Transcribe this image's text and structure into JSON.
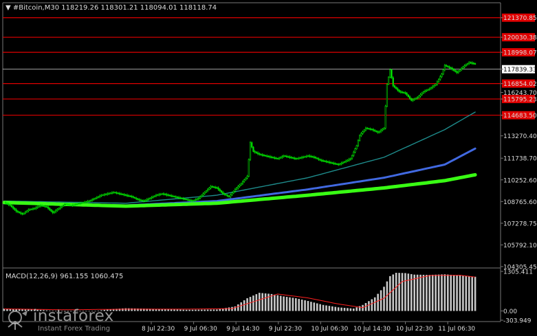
{
  "chart_data": [
    {
      "type": "candlestick",
      "header": "▼ #Bitcoin,M30  118219.26 118301.21 118094.01 118118.74",
      "price_range": [
        104305.45,
        122300
      ],
      "price_ticks": [
        121370.85,
        120030.38,
        118998.07,
        117839.33,
        116854.02,
        116243.7,
        115795.23,
        114683.5,
        113270.4,
        111738.7,
        110252.6,
        108765.6,
        107278.75,
        105792.1,
        104305.45
      ],
      "resistance_levels": [
        121370.85,
        120030.38,
        118998.07,
        116854.02,
        115795.23,
        114683.5
      ],
      "current_price": 117839.33,
      "current_price_label": "117839.33",
      "time_labels": [
        "8 Jul 22:30",
        "9 Jul 06:30",
        "9 Jul 14:30",
        "9 Jul 22:30",
        "10 Jul 06:30",
        "10 Jul 14:30",
        "10 Jul 22:30",
        "11 Jul 06:30"
      ],
      "price_path": [
        [
          0,
          108700
        ],
        [
          4,
          108500
        ],
        [
          8,
          108100
        ],
        [
          12,
          107900
        ],
        [
          16,
          108200
        ],
        [
          20,
          108300
        ],
        [
          24,
          108500
        ],
        [
          28,
          108400
        ],
        [
          32,
          108000
        ],
        [
          36,
          108300
        ],
        [
          40,
          108600
        ],
        [
          44,
          108500
        ],
        [
          48,
          108600
        ],
        [
          52,
          108700
        ],
        [
          56,
          108800
        ],
        [
          60,
          109000
        ],
        [
          64,
          109200
        ],
        [
          68,
          109300
        ],
        [
          72,
          109400
        ],
        [
          76,
          109300
        ],
        [
          80,
          109200
        ],
        [
          84,
          109100
        ],
        [
          88,
          108900
        ],
        [
          92,
          108800
        ],
        [
          96,
          109000
        ],
        [
          100,
          109200
        ],
        [
          104,
          109300
        ],
        [
          108,
          109200
        ],
        [
          112,
          109100
        ],
        [
          116,
          109000
        ],
        [
          120,
          108900
        ],
        [
          124,
          108800
        ],
        [
          128,
          109000
        ],
        [
          132,
          109400
        ],
        [
          136,
          109800
        ],
        [
          140,
          109700
        ],
        [
          144,
          109300
        ],
        [
          148,
          109100
        ],
        [
          152,
          109600
        ],
        [
          156,
          110000
        ],
        [
          160,
          110500
        ],
        [
          162,
          112800
        ],
        [
          164,
          112200
        ],
        [
          168,
          112000
        ],
        [
          172,
          111900
        ],
        [
          176,
          111800
        ],
        [
          180,
          111700
        ],
        [
          184,
          111900
        ],
        [
          188,
          111800
        ],
        [
          192,
          111700
        ],
        [
          196,
          111800
        ],
        [
          200,
          111900
        ],
        [
          204,
          111800
        ],
        [
          208,
          111600
        ],
        [
          212,
          111500
        ],
        [
          216,
          111400
        ],
        [
          220,
          111300
        ],
        [
          224,
          111500
        ],
        [
          228,
          111700
        ],
        [
          232,
          112600
        ],
        [
          234,
          113300
        ],
        [
          238,
          113800
        ],
        [
          242,
          113700
        ],
        [
          246,
          113500
        ],
        [
          250,
          113800
        ],
        [
          252,
          116800
        ],
        [
          254,
          117800
        ],
        [
          256,
          116700
        ],
        [
          260,
          116300
        ],
        [
          264,
          116200
        ],
        [
          268,
          115700
        ],
        [
          272,
          115900
        ],
        [
          276,
          116300
        ],
        [
          280,
          116500
        ],
        [
          284,
          116800
        ],
        [
          288,
          117500
        ],
        [
          290,
          118100
        ],
        [
          294,
          117900
        ],
        [
          298,
          117600
        ],
        [
          302,
          118000
        ],
        [
          306,
          118300
        ],
        [
          310,
          118200
        ]
      ],
      "moving_averages": [
        {
          "color": "#1e8c8c",
          "width": 1.4,
          "points": [
            [
              0,
              108800
            ],
            [
              80,
              108650
            ],
            [
              140,
              109200
            ],
            [
              200,
              110400
            ],
            [
              250,
              111800
            ],
            [
              290,
              113700
            ],
            [
              310,
              114900
            ]
          ]
        },
        {
          "color": "#4169e1",
          "width": 3,
          "points": [
            [
              0,
              108650
            ],
            [
              80,
              108500
            ],
            [
              140,
              108800
            ],
            [
              200,
              109600
            ],
            [
              250,
              110400
            ],
            [
              290,
              111300
            ],
            [
              310,
              112400
            ]
          ]
        },
        {
          "color": "#39ff14",
          "width": 5,
          "points": [
            [
              0,
              108700
            ],
            [
              80,
              108450
            ],
            [
              140,
              108650
            ],
            [
              200,
              109200
            ],
            [
              250,
              109700
            ],
            [
              290,
              110200
            ],
            [
              310,
              110600
            ]
          ]
        }
      ]
    },
    {
      "type": "bar",
      "header": "MACD(12,26,9) 961.155 1060.475",
      "y_ticks": [
        "1305.411",
        "0.00",
        "-303.949"
      ],
      "range": [
        -303.949,
        1305.411
      ],
      "histogram_path": [
        [
          0,
          80
        ],
        [
          20,
          50
        ],
        [
          40,
          -20
        ],
        [
          60,
          0
        ],
        [
          70,
          60
        ],
        [
          80,
          90
        ],
        [
          100,
          70
        ],
        [
          120,
          40
        ],
        [
          140,
          50
        ],
        [
          152,
          150
        ],
        [
          160,
          420
        ],
        [
          168,
          600
        ],
        [
          176,
          560
        ],
        [
          184,
          480
        ],
        [
          192,
          420
        ],
        [
          200,
          330
        ],
        [
          210,
          200
        ],
        [
          220,
          120
        ],
        [
          230,
          80
        ],
        [
          236,
          200
        ],
        [
          244,
          450
        ],
        [
          250,
          800
        ],
        [
          254,
          1150
        ],
        [
          258,
          1260
        ],
        [
          264,
          1250
        ],
        [
          270,
          1200
        ],
        [
          280,
          1190
        ],
        [
          290,
          1210
        ],
        [
          300,
          1170
        ],
        [
          310,
          1130
        ]
      ],
      "signal_path": [
        [
          0,
          70
        ],
        [
          40,
          40
        ],
        [
          80,
          60
        ],
        [
          120,
          60
        ],
        [
          150,
          80
        ],
        [
          165,
          320
        ],
        [
          180,
          560
        ],
        [
          200,
          430
        ],
        [
          220,
          230
        ],
        [
          236,
          110
        ],
        [
          250,
          420
        ],
        [
          262,
          970
        ],
        [
          280,
          1170
        ],
        [
          300,
          1180
        ],
        [
          310,
          1120
        ]
      ]
    }
  ],
  "watermark": {
    "brand": "instaforex",
    "tagline": "Instant Forex Trading"
  }
}
